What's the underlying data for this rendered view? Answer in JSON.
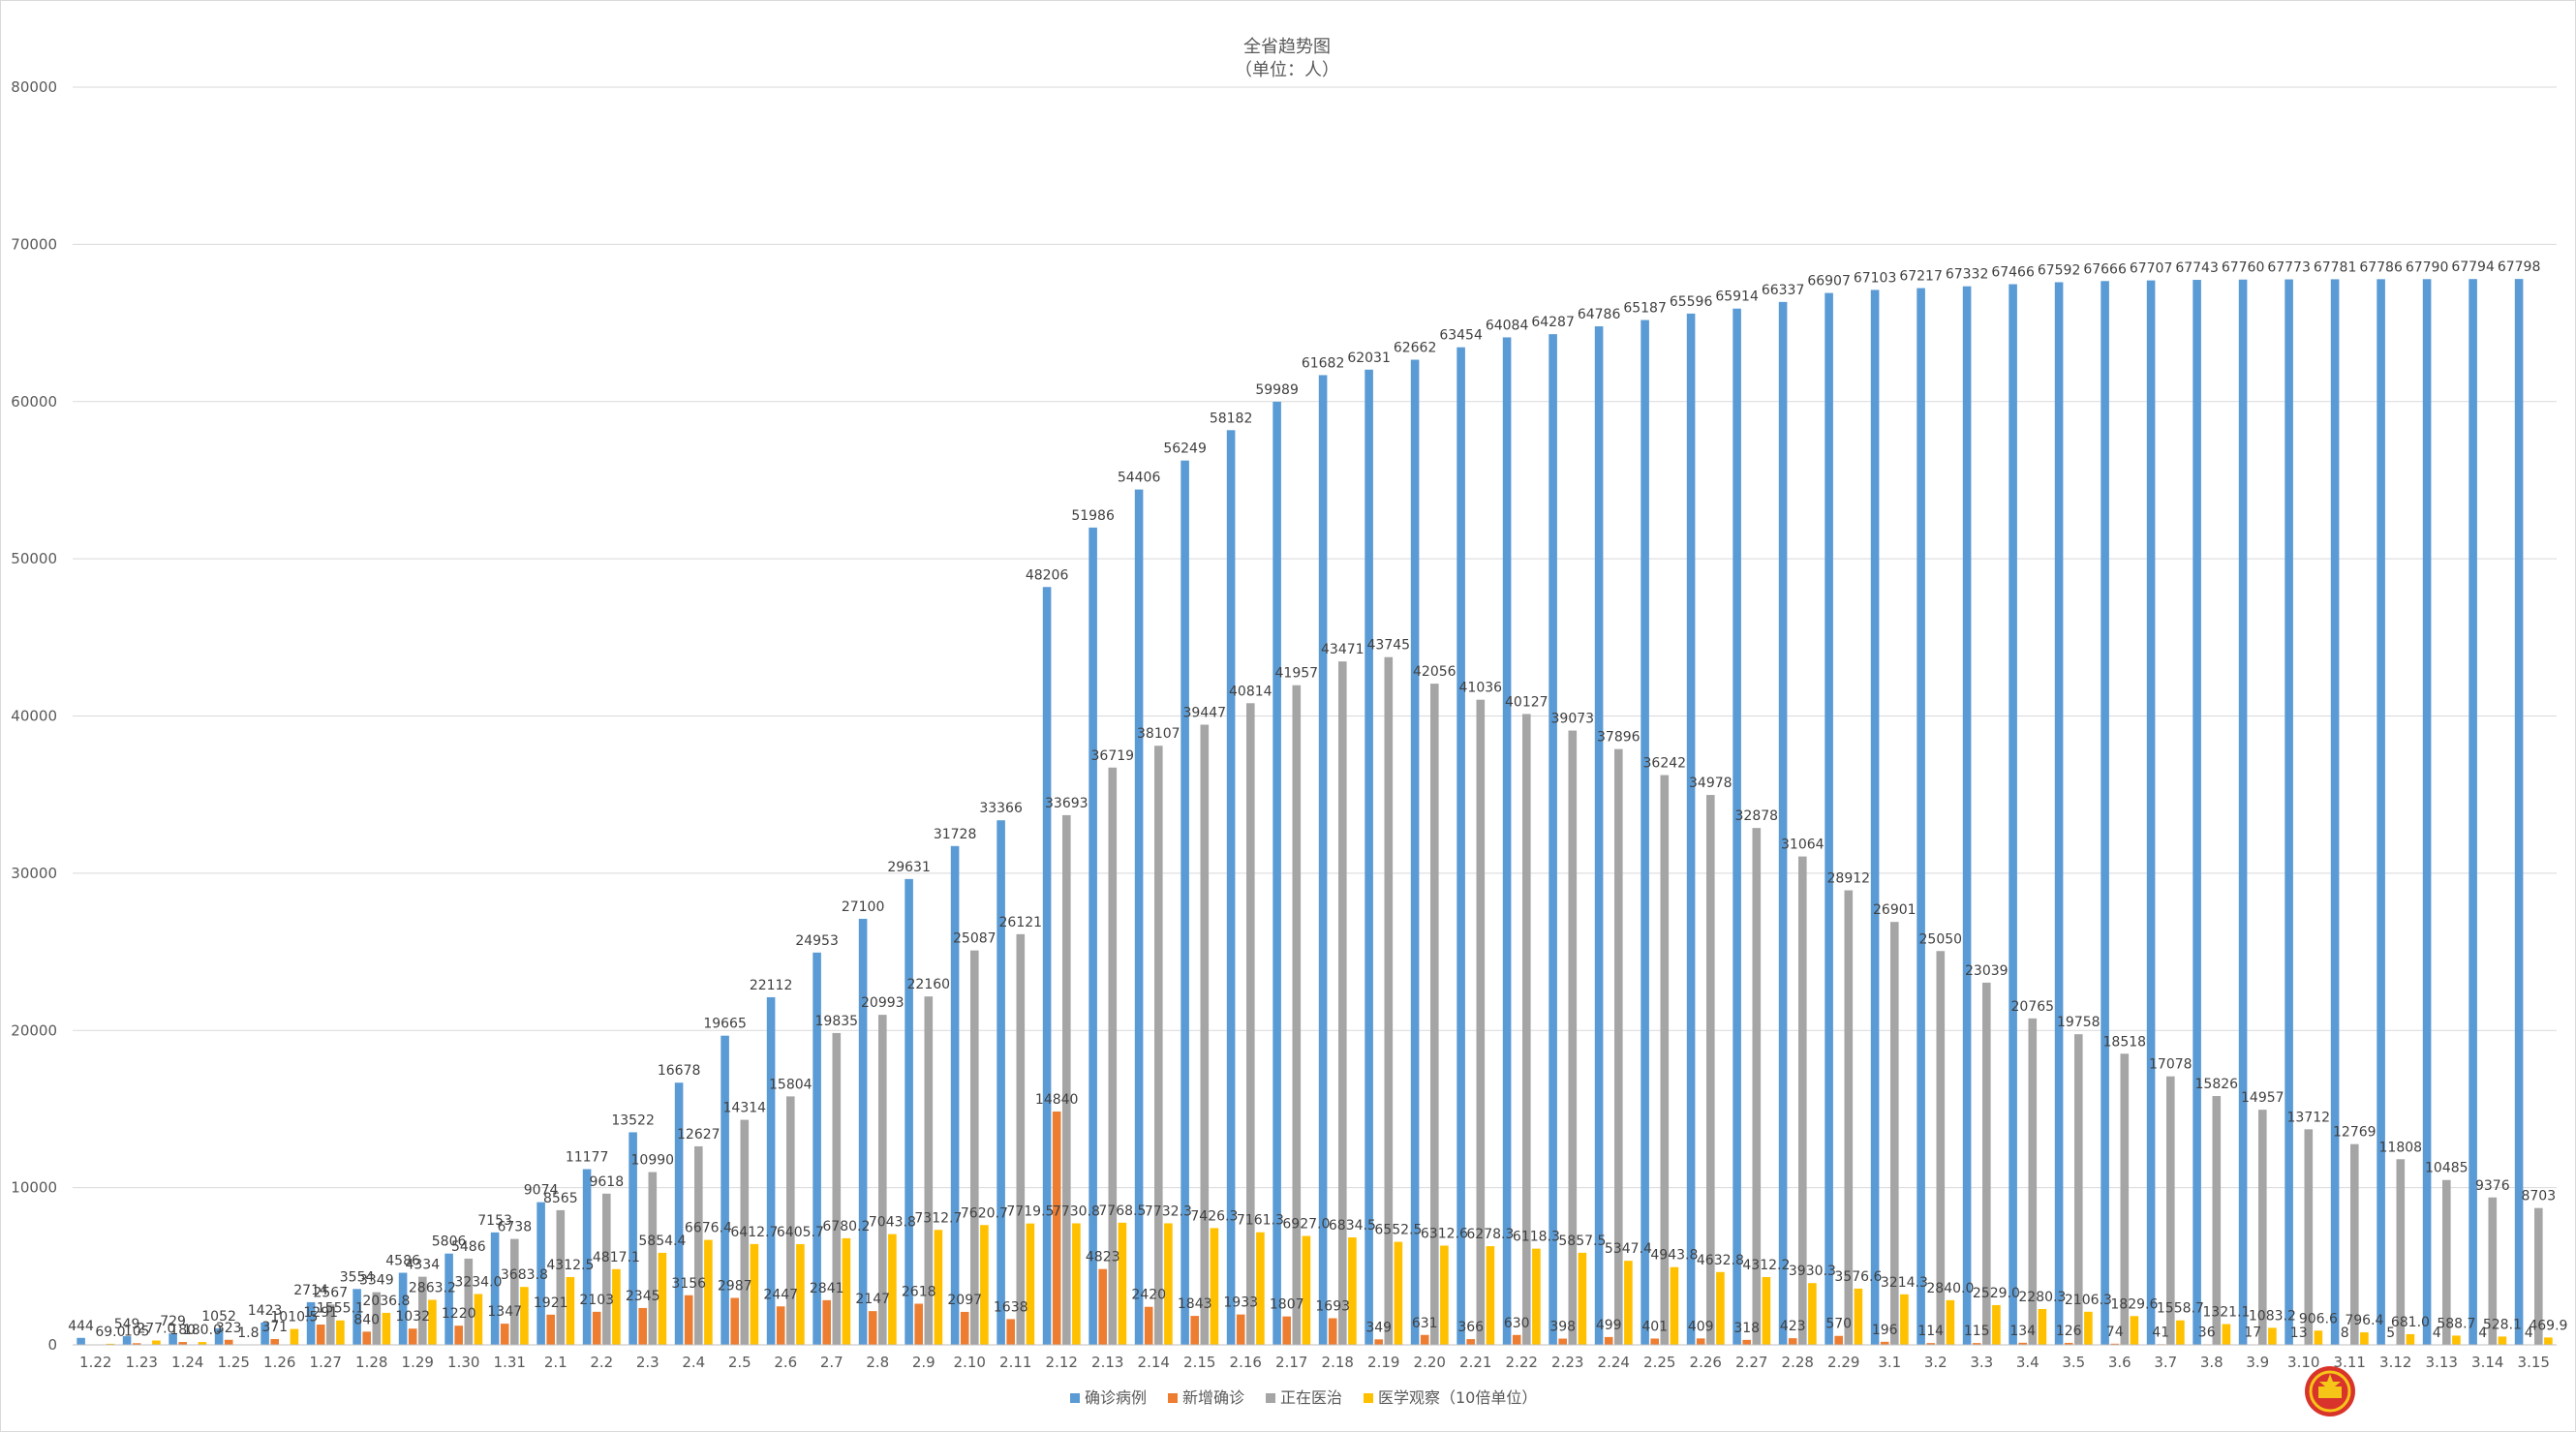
{
  "chart_data": {
    "type": "bar",
    "title": "全省趋势图",
    "subtitle": "（单位：人）",
    "ylim": [
      0,
      80000
    ],
    "yticks": [
      0,
      10000,
      20000,
      30000,
      40000,
      50000,
      60000,
      70000,
      80000
    ],
    "grid": true,
    "legend_position": "bottom",
    "categories": [
      "1.22",
      "1.23",
      "1.24",
      "1.25",
      "1.26",
      "1.27",
      "1.28",
      "1.29",
      "1.30",
      "1.31",
      "2.1",
      "2.2",
      "2.3",
      "2.4",
      "2.5",
      "2.6",
      "2.7",
      "2.8",
      "2.9",
      "2.10",
      "2.11",
      "2.12",
      "2.13",
      "2.14",
      "2.15",
      "2.16",
      "2.17",
      "2.18",
      "2.19",
      "2.20",
      "2.21",
      "2.22",
      "2.23",
      "2.24",
      "2.25",
      "2.26",
      "2.27",
      "2.28",
      "2.29",
      "3.1",
      "3.2",
      "3.3",
      "3.4",
      "3.5",
      "3.6",
      "3.7",
      "3.8",
      "3.9",
      "3.10",
      "3.11",
      "3.12",
      "3.13",
      "3.14",
      "3.15"
    ],
    "series": [
      {
        "name": "确诊病例",
        "color": "#5b9bd5",
        "label_format": "int",
        "values": [
          444,
          549,
          729,
          1052,
          1423,
          2714,
          3554,
          4586,
          5806,
          7153,
          9074,
          11177,
          13522,
          16678,
          19665,
          22112,
          24953,
          27100,
          29631,
          31728,
          33366,
          48206,
          51986,
          54406,
          56249,
          58182,
          59989,
          61682,
          62031,
          62662,
          63454,
          64084,
          64287,
          64786,
          65187,
          65596,
          65914,
          66337,
          66907,
          67103,
          67217,
          67332,
          67466,
          67592,
          67666,
          67707,
          67743,
          67760,
          67773,
          67781,
          67786,
          67790,
          67794,
          67798
        ]
      },
      {
        "name": "新增确诊",
        "color": "#ed7d31",
        "label_format": "int",
        "values": [
          0,
          105,
          180,
          323,
          371,
          1291,
          840,
          1032,
          1220,
          1347,
          1921,
          2103,
          2345,
          3156,
          2987,
          2447,
          2841,
          2147,
          2618,
          2097,
          1638,
          14840,
          4823,
          2420,
          1843,
          1933,
          1807,
          1693,
          349,
          631,
          366,
          630,
          398,
          499,
          401,
          409,
          318,
          423,
          570,
          196,
          114,
          115,
          134,
          126,
          74,
          41,
          36,
          17,
          13,
          8,
          5,
          4,
          4,
          4
        ]
      },
      {
        "name": "正在医治",
        "color": "#a5a5a5",
        "label_format": "int",
        "values": [
          0,
          0,
          0,
          0,
          0,
          2567,
          3349,
          4334,
          5486,
          6738,
          8565,
          9618,
          10990,
          12627,
          14314,
          15804,
          19835,
          20993,
          22160,
          25087,
          26121,
          33693,
          36719,
          38107,
          39447,
          40814,
          41957,
          43471,
          43745,
          42056,
          41036,
          40127,
          39073,
          37896,
          36242,
          34978,
          32878,
          31064,
          28912,
          26901,
          25050,
          23039,
          20765,
          19758,
          18518,
          17078,
          15826,
          14957,
          13712,
          12769,
          11808,
          10485,
          9376,
          8703
        ]
      },
      {
        "name": "医学观察（10倍单位）",
        "color": "#ffc000",
        "label_format": "one_decimal",
        "values": [
          69,
          277,
          180,
          1.8,
          1010.5,
          1555.1,
          2036.8,
          2863.2,
          3234,
          3683.8,
          4312.5,
          4817.1,
          5854.4,
          6676.4,
          6412.7,
          6405.7,
          6780.2,
          7043.8,
          7312.7,
          7620.7,
          7719.5,
          7730.8,
          7768.5,
          7732.3,
          7426.3,
          7161.3,
          6927,
          6834.5,
          6552.5,
          6312.6,
          6278.3,
          6118.3,
          5857.5,
          5347.4,
          4943.8,
          4632.8,
          4312.2,
          3930.3,
          3576.6,
          3214.3,
          2840,
          2529,
          2280.3,
          2106.3,
          1829.6,
          1558.7,
          1321.1,
          1083.2,
          906.6,
          796.4,
          681,
          588.7,
          528.1,
          469.9
        ]
      }
    ]
  }
}
